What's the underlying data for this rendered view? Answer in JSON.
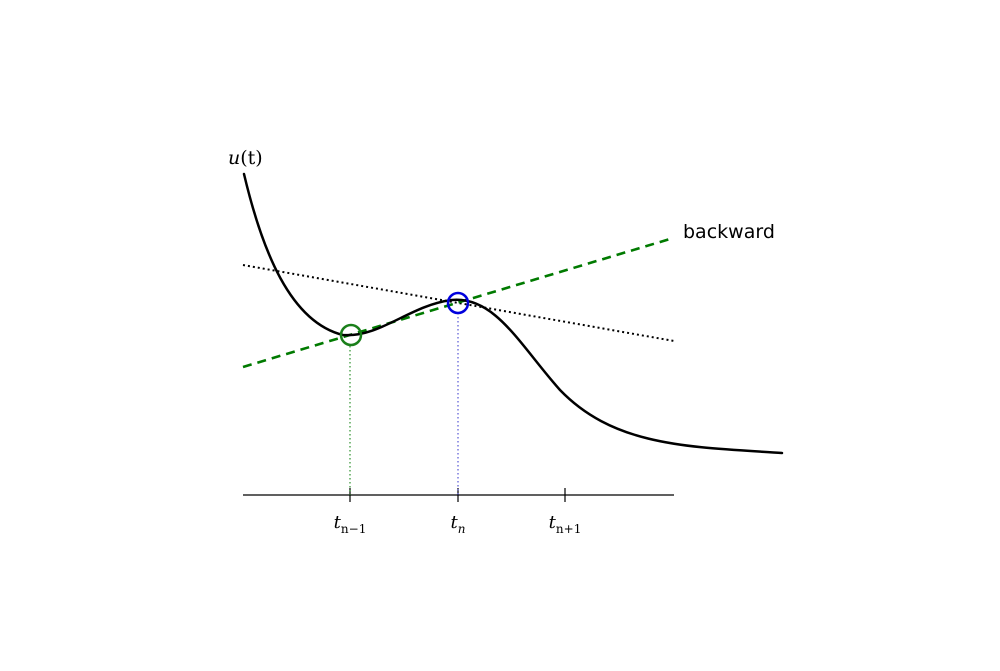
{
  "y_axis_label": {
    "main": "u",
    "arg": "(t)"
  },
  "method_label": "backward",
  "ticks": [
    {
      "name": "t",
      "sub": "n−1"
    },
    {
      "name": "t",
      "sub": "n"
    },
    {
      "name": "t",
      "sub": "n+1"
    }
  ],
  "colors": {
    "curve": "#000000",
    "backward_line": "#007a00",
    "tangent_line": "#000000",
    "marker_prev": "#1a7f1a",
    "marker_curr": "#0000dd",
    "guide_prev": "#007a00",
    "guide_curr": "#3333cc"
  }
}
